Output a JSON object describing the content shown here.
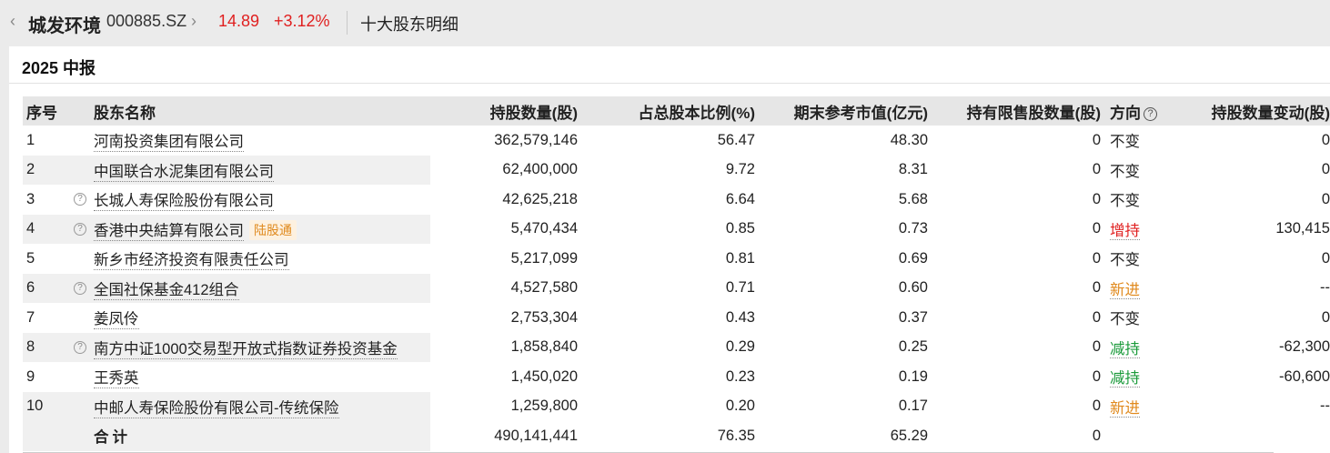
{
  "header": {
    "stock_name": "城发环境",
    "stock_code": "000885.SZ",
    "price": "14.89",
    "change": "+3.12%",
    "page_name": "十大股东明细"
  },
  "period": "2025 中报",
  "columns": {
    "idx": "序号",
    "name": "股东名称",
    "hold": "持股数量(股)",
    "ratio": "占总股本比例(%)",
    "mv": "期末参考市值(亿元)",
    "limited": "持有限售股数量(股)",
    "direction": "方向",
    "change": "持股数量变动(股)"
  },
  "rows": [
    {
      "idx": "1",
      "name": "河南投资集团有限公司",
      "hold": "362,579,146",
      "ratio": "56.47",
      "mv": "48.30",
      "limited": "0",
      "direction": "不变",
      "change": "0"
    },
    {
      "idx": "2",
      "name": "中国联合水泥集团有限公司",
      "hold": "62,400,000",
      "ratio": "9.72",
      "mv": "8.31",
      "limited": "0",
      "direction": "不变",
      "change": "0"
    },
    {
      "idx": "3",
      "name": "长城人寿保险股份有限公司",
      "hold": "42,625,218",
      "ratio": "6.64",
      "mv": "5.68",
      "limited": "0",
      "direction": "不变",
      "change": "0"
    },
    {
      "idx": "4",
      "name": "香港中央結算有限公司",
      "tag": "陆股通",
      "hold": "5,470,434",
      "ratio": "0.85",
      "mv": "0.73",
      "limited": "0",
      "direction": "增持",
      "change": "130,415"
    },
    {
      "idx": "5",
      "name": "新乡市经济投资有限责任公司",
      "hold": "5,217,099",
      "ratio": "0.81",
      "mv": "0.69",
      "limited": "0",
      "direction": "不变",
      "change": "0"
    },
    {
      "idx": "6",
      "name": "全国社保基金412组合",
      "hold": "4,527,580",
      "ratio": "0.71",
      "mv": "0.60",
      "limited": "0",
      "direction": "新进",
      "change": "--"
    },
    {
      "idx": "7",
      "name": "姜凤伶",
      "hold": "2,753,304",
      "ratio": "0.43",
      "mv": "0.37",
      "limited": "0",
      "direction": "不变",
      "change": "0"
    },
    {
      "idx": "8",
      "name": "南方中证1000交易型开放式指数证券投资基金",
      "hold": "1,858,840",
      "ratio": "0.29",
      "mv": "0.25",
      "limited": "0",
      "direction": "减持",
      "change": "-62,300"
    },
    {
      "idx": "9",
      "name": "王秀英",
      "hold": "1,450,020",
      "ratio": "0.23",
      "mv": "0.19",
      "limited": "0",
      "direction": "减持",
      "change": "-60,600"
    },
    {
      "idx": "10",
      "name": "中邮人寿保险股份有限公司-传统保险",
      "hold": "1,259,800",
      "ratio": "0.20",
      "mv": "0.17",
      "limited": "0",
      "direction": "新进",
      "change": "--"
    }
  ],
  "total": {
    "label": "合计",
    "hold": "490,141,441",
    "ratio": "76.35",
    "mv": "65.29",
    "limited": "0"
  },
  "colors": {
    "up": "#e02020",
    "down": "#1a9a3a",
    "new": "#e08a1e"
  }
}
